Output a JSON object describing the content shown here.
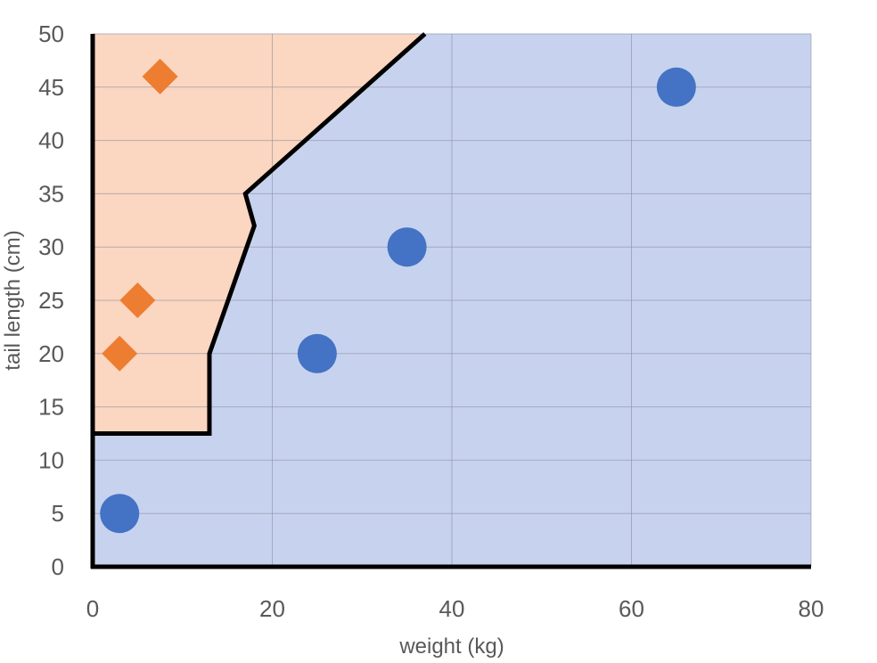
{
  "chart_data": {
    "type": "scatter",
    "xlabel": "weight (kg)",
    "ylabel": "tail length (cm)",
    "xlim": [
      0,
      80
    ],
    "ylim": [
      0,
      50
    ],
    "x_ticks": [
      "0",
      "20",
      "40",
      "60",
      "80"
    ],
    "y_ticks": [
      "0",
      "5",
      "10",
      "15",
      "20",
      "25",
      "30",
      "35",
      "40",
      "45",
      "50"
    ],
    "grid": true,
    "colors": {
      "region_a": "#fbd6c1",
      "region_b": "#c7d3ee",
      "series_diamond": "#ed7d31",
      "series_circle": "#4472c4",
      "boundary": "#000000",
      "grid": "#8a8fa0"
    },
    "boundary": {
      "x": [
        0,
        13,
        13,
        18,
        17,
        37
      ],
      "y": [
        12.5,
        12.5,
        20,
        32,
        35,
        50
      ]
    },
    "series": [
      {
        "marker": "diamond",
        "points": [
          {
            "x": 7.5,
            "y": 46
          },
          {
            "x": 5,
            "y": 25
          },
          {
            "x": 3,
            "y": 20
          }
        ]
      },
      {
        "marker": "circle",
        "points": [
          {
            "x": 65,
            "y": 45
          },
          {
            "x": 35,
            "y": 30
          },
          {
            "x": 25,
            "y": 20
          },
          {
            "x": 3,
            "y": 5
          }
        ]
      }
    ]
  }
}
